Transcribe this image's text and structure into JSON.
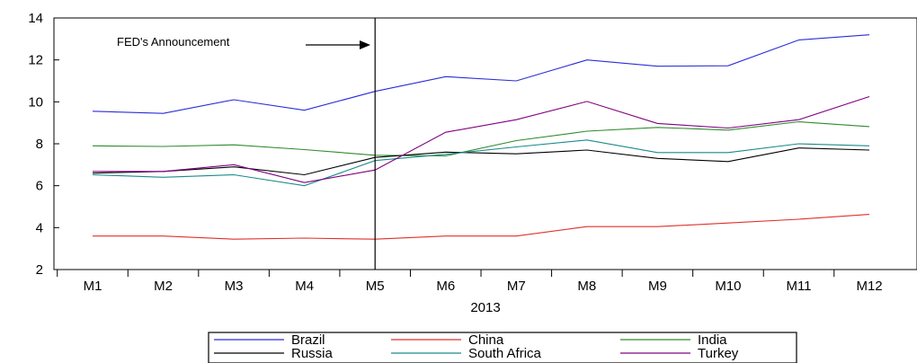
{
  "chart_data": {
    "type": "line",
    "xlabel": "2013",
    "ylabel": "",
    "title": "",
    "categories": [
      "M1",
      "M2",
      "M3",
      "M4",
      "M5",
      "M6",
      "M7",
      "M8",
      "M9",
      "M10",
      "M11",
      "M12"
    ],
    "ylim": [
      2,
      14
    ],
    "yticks": [
      2,
      4,
      6,
      8,
      10,
      12,
      14
    ],
    "grid": false,
    "legend_position": "bottom",
    "annotation": {
      "text": "FED's Announcement",
      "category": "M5"
    },
    "series": [
      {
        "name": "Brazil",
        "color": "#2b2bd9",
        "values": [
          9.55,
          9.45,
          10.1,
          9.6,
          10.5,
          11.2,
          11.0,
          12.0,
          11.7,
          11.72,
          12.95,
          13.2
        ]
      },
      {
        "name": "China",
        "color": "#e0302a",
        "values": [
          3.6,
          3.6,
          3.45,
          3.5,
          3.45,
          3.6,
          3.6,
          4.05,
          4.05,
          4.22,
          4.4,
          4.63
        ]
      },
      {
        "name": "India",
        "color": "#2e8b2e",
        "values": [
          7.9,
          7.87,
          7.95,
          7.72,
          7.45,
          7.42,
          8.15,
          8.6,
          8.78,
          8.65,
          9.05,
          8.82
        ]
      },
      {
        "name": "Russia",
        "color": "#000000",
        "values": [
          6.6,
          6.68,
          6.9,
          6.52,
          7.35,
          7.6,
          7.52,
          7.7,
          7.3,
          7.15,
          7.8,
          7.7
        ]
      },
      {
        "name": "South Africa",
        "color": "#1a8a8a",
        "values": [
          6.52,
          6.4,
          6.52,
          6.0,
          7.2,
          7.5,
          7.85,
          8.18,
          7.58,
          7.58,
          8.0,
          7.9
        ]
      },
      {
        "name": "Turkey",
        "color": "#800080",
        "values": [
          6.68,
          6.68,
          7.0,
          6.15,
          6.75,
          8.55,
          9.15,
          10.02,
          8.97,
          8.75,
          9.15,
          10.25
        ]
      }
    ]
  }
}
